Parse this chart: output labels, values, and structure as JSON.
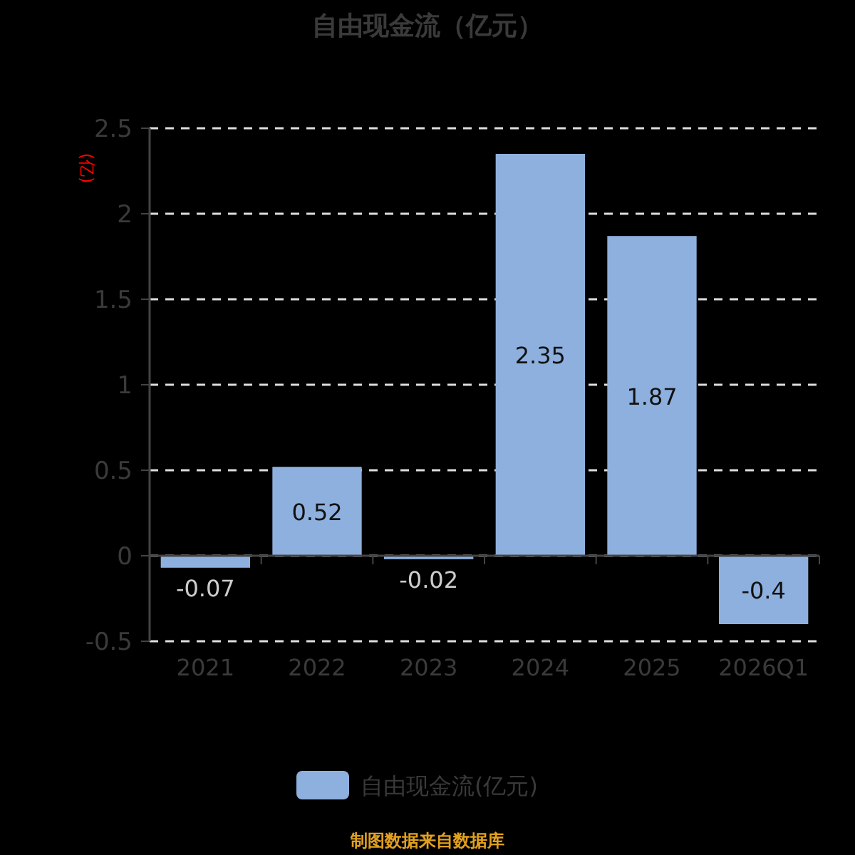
{
  "chart_data": {
    "type": "bar",
    "title": "自由现金流（亿元）",
    "ylabel": "(亿)",
    "categories": [
      "2021",
      "2022",
      "2023",
      "2024",
      "2025",
      "2026Q1"
    ],
    "series": [
      {
        "name": "自由现金流(亿元)",
        "color": "#8eb0de",
        "values": [
          -0.07,
          0.52,
          -0.02,
          2.35,
          1.87,
          -0.4
        ]
      }
    ],
    "ylim": [
      -0.5,
      2.5
    ],
    "yticks": [
      -0.5,
      0,
      0.5,
      1,
      1.5,
      2,
      2.5
    ],
    "grid": "y",
    "legend": "bottom",
    "data_labels": true,
    "annotations": [
      "制图数据来自数据库"
    ]
  }
}
